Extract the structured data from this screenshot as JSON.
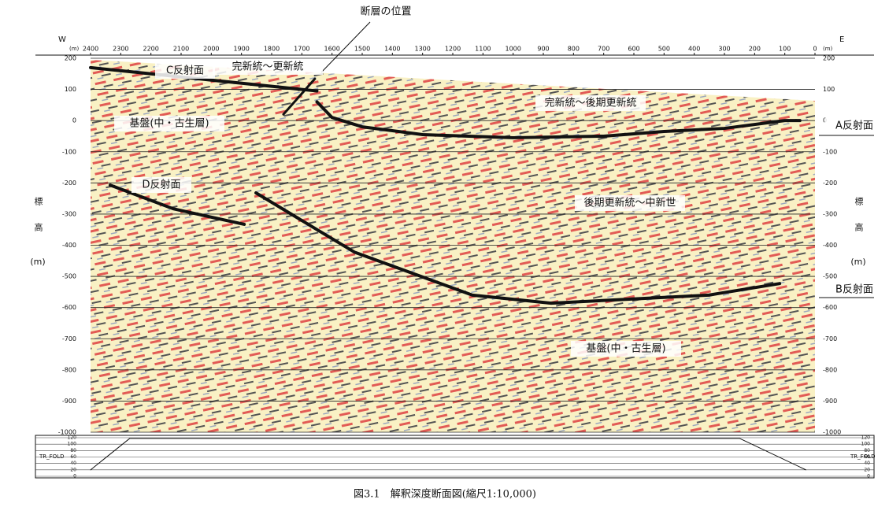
{
  "chart_data": [
    {
      "type": "line",
      "title": "図3.1　解釈深度断面図(縮尺1:10,000)",
      "west": "W",
      "east": "E",
      "xunit": "(m)",
      "ylabel": "標高",
      "yunit": "(m)",
      "xlim": [
        2400,
        0
      ],
      "xticks": [
        2400,
        2300,
        2200,
        2100,
        2000,
        1900,
        1800,
        1700,
        1600,
        1500,
        1400,
        1300,
        1200,
        1100,
        1000,
        900,
        800,
        700,
        600,
        500,
        400,
        300,
        200,
        100,
        0
      ],
      "ylim": [
        -1000,
        200
      ],
      "yticks": [
        200,
        100,
        0,
        -100,
        -200,
        -300,
        -400,
        -500,
        -600,
        -700,
        -800,
        -900,
        -1000
      ],
      "grid": true,
      "series": [
        {
          "name": "A反射面",
          "color": "#111111",
          "x": [
            1650,
            1600,
            1500,
            1300,
            1000,
            700,
            500,
            300,
            100,
            50
          ],
          "values": [
            60,
            10,
            -20,
            -45,
            -55,
            -50,
            -35,
            -25,
            0,
            0
          ]
        },
        {
          "name": "B反射面",
          "color": "#111111",
          "x": [
            1852,
            1526,
            1135,
            874,
            352,
            117
          ],
          "values": [
            -232,
            -422,
            -560,
            -586,
            -560,
            -523
          ]
        },
        {
          "name": "C反射面",
          "color": "#111111",
          "x": [
            2400,
            2200,
            2000,
            1800,
            1650
          ],
          "values": [
            170,
            150,
            130,
            110,
            95
          ]
        },
        {
          "name": "D反射面",
          "color": "#111111",
          "x": [
            2335,
            2126,
            1891
          ],
          "values": [
            -207,
            -283,
            -333
          ]
        },
        {
          "name": "断層の位置",
          "color": "#111111",
          "x": [
            1761,
            1657
          ],
          "values": [
            20,
            134
          ]
        }
      ],
      "annotations": [
        "完新統～更新統",
        "完新統～後期更新統",
        "基盤(中・古生層)",
        "後期更新統～中新世",
        "基盤(中・古生層)"
      ]
    },
    {
      "type": "line",
      "ylabel": "TR_FOLD",
      "xlim": [
        2400,
        0
      ],
      "ylim": [
        0,
        120
      ],
      "yticks": [
        0,
        20,
        40,
        60,
        80,
        100,
        120
      ],
      "series": [
        {
          "color": "#111111",
          "x": [
            2400,
            2270,
            250,
            30
          ],
          "values": [
            20,
            118,
            118,
            20
          ]
        }
      ]
    }
  ]
}
